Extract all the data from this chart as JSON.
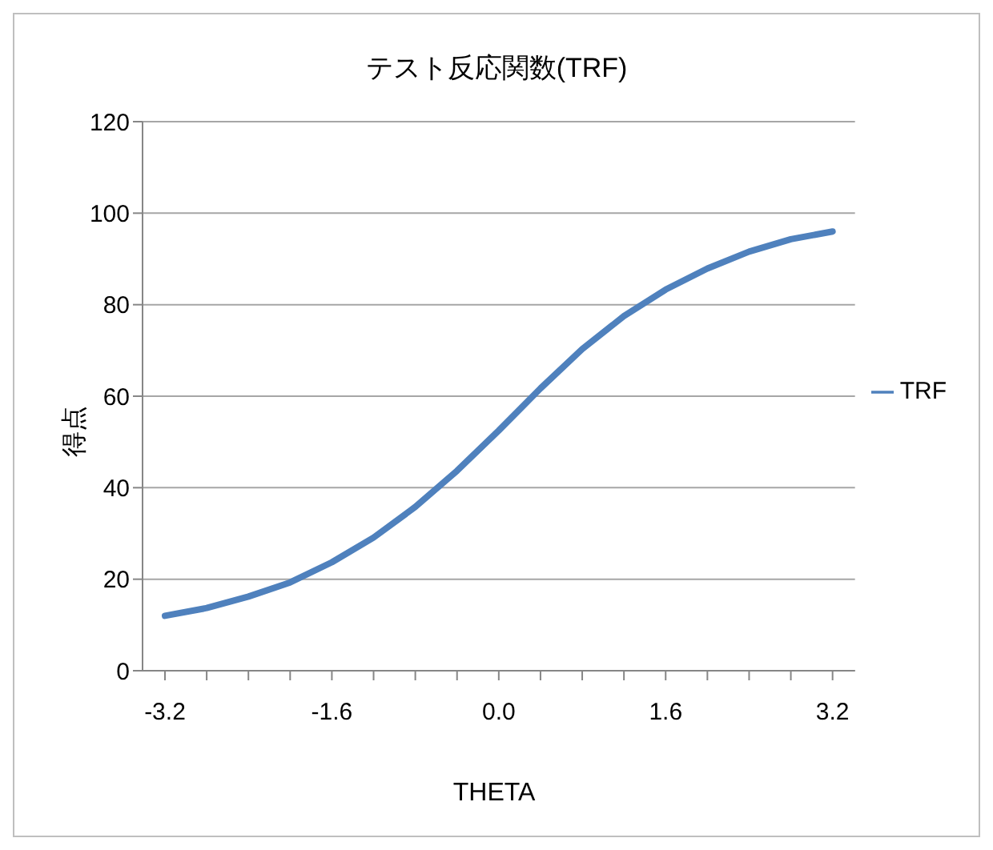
{
  "chart_data": {
    "type": "line",
    "title": "テスト反応関数(TRF)",
    "xlabel": "THETA",
    "ylabel": "得点",
    "categories": [
      "-3.2",
      null,
      null,
      null,
      "-1.6",
      null,
      null,
      null,
      "0.0",
      null,
      null,
      null,
      "1.6",
      null,
      null,
      null,
      "3.2"
    ],
    "series": [
      {
        "name": "TRF",
        "color": "#4f81bd",
        "values": [
          12.0,
          13.7,
          16.2,
          19.3,
          23.7,
          29.1,
          35.8,
          43.7,
          52.5,
          61.7,
          70.3,
          77.5,
          83.3,
          87.9,
          91.6,
          94.3,
          96.0
        ]
      }
    ],
    "ylim": [
      0,
      120
    ],
    "yticks": [
      0,
      20,
      40,
      60,
      80,
      100,
      120
    ],
    "grid": "y",
    "legend": "right",
    "marker": "none",
    "line_style": "solid"
  }
}
